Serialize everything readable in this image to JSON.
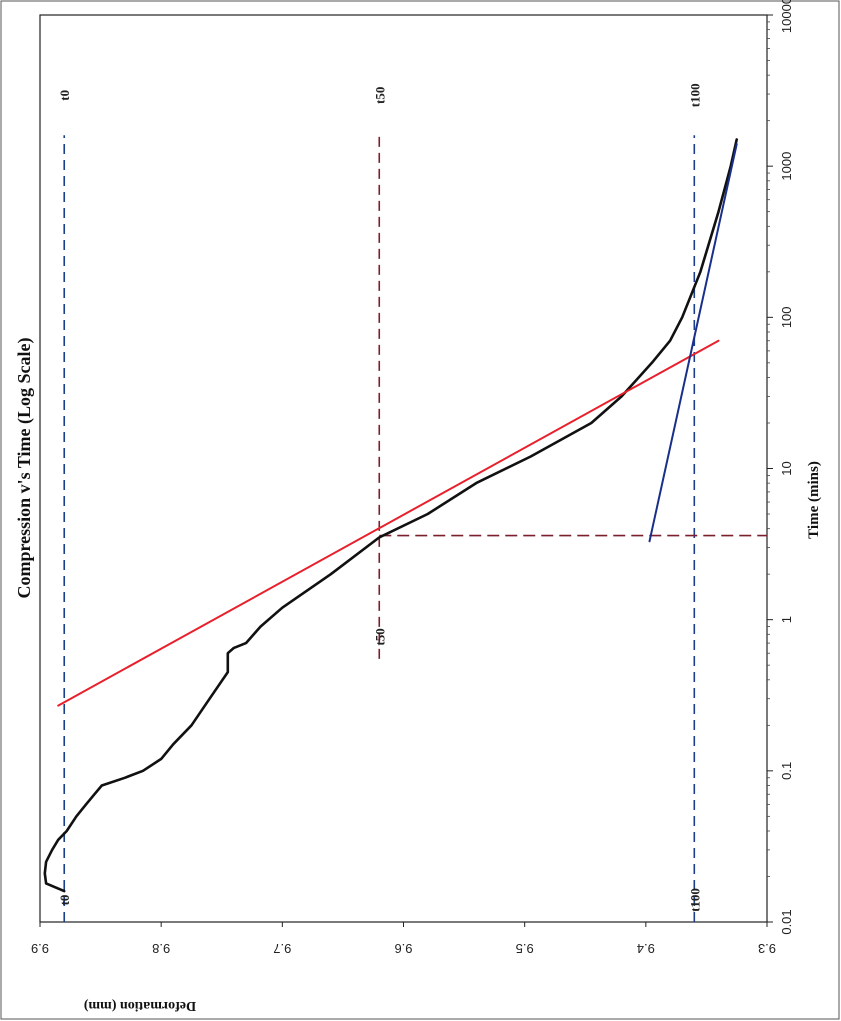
{
  "chart_data": {
    "type": "line",
    "title": "Compression v's Time (Log Scale)",
    "xlabel": "Time (mins)",
    "ylabel": "Deformation (mm)",
    "x_scale": "log",
    "xlim": [
      0.01,
      10000
    ],
    "ylim": [
      9.3,
      9.9
    ],
    "x_ticks": [
      "0.01",
      "0.1",
      "1",
      "10",
      "100",
      "1000",
      "10000"
    ],
    "y_ticks": [
      "9.3",
      "9.4",
      "9.5",
      "9.6",
      "9.7",
      "9.8",
      "9.9"
    ],
    "grid": false,
    "legend": "none",
    "series": [
      {
        "role": "measured-curve",
        "color": "#111111",
        "x": [
          0.016,
          0.018,
          0.021,
          0.025,
          0.03,
          0.035,
          0.04,
          0.05,
          0.06,
          0.07,
          0.08,
          0.09,
          0.1,
          0.12,
          0.15,
          0.2,
          0.3,
          0.45,
          0.6,
          0.65,
          0.7,
          0.9,
          1.2,
          2.0,
          3.5,
          5,
          8,
          12,
          20,
          30,
          50,
          70,
          100,
          200,
          500,
          1000,
          1500
        ],
        "y": [
          9.88,
          9.895,
          9.896,
          9.895,
          9.89,
          9.885,
          9.878,
          9.87,
          9.862,
          9.855,
          9.849,
          9.83,
          9.815,
          9.8,
          9.79,
          9.775,
          9.76,
          9.745,
          9.745,
          9.74,
          9.73,
          9.718,
          9.7,
          9.66,
          9.62,
          9.58,
          9.54,
          9.495,
          9.445,
          9.42,
          9.395,
          9.38,
          9.37,
          9.355,
          9.34,
          9.33,
          9.325
        ]
      },
      {
        "role": "steep-tangent",
        "color": "#e8202c",
        "x": [
          0.27,
          70
        ],
        "y": [
          9.885,
          9.34
        ]
      },
      {
        "role": "secondary-tangent",
        "color": "#1a2f8a",
        "x": [
          3.3,
          1400
        ],
        "y": [
          9.397,
          9.325
        ]
      }
    ],
    "reference_lines": [
      {
        "label": "t0",
        "color": "#1a3f8c",
        "y": 9.88,
        "x_from": 0.01,
        "x_to": 1600,
        "start_label": "t0",
        "end_label": "t0"
      },
      {
        "label": "t50",
        "color": "#7a1f2b",
        "y": 9.62,
        "x_from": 0.55,
        "x_to": 1600,
        "start_label": "t50",
        "end_label": "t50"
      },
      {
        "label": "t100",
        "color": "#1a3f8c",
        "y": 9.36,
        "x_from": 0.01,
        "x_to": 1600,
        "start_label": "t100",
        "end_label": "t100"
      }
    ],
    "vertical_marker": {
      "color": "#7a1f2b",
      "x": 3.6,
      "y_from": 9.62,
      "y_to": 9.3
    }
  }
}
